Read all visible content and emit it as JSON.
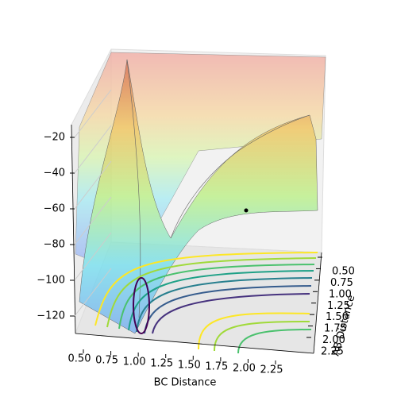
{
  "chart_data": {
    "type": "surface3d",
    "xlabel": "BC Distance",
    "ylabel": "AB Distance",
    "xticks": [
      {
        "value": 0.5,
        "label": "0.50"
      },
      {
        "value": 0.75,
        "label": "0.75"
      },
      {
        "value": 1.0,
        "label": "1.00"
      },
      {
        "value": 1.25,
        "label": "1.25"
      },
      {
        "value": 1.5,
        "label": "1.50"
      },
      {
        "value": 1.75,
        "label": "1.75"
      },
      {
        "value": 2.0,
        "label": "2.00"
      },
      {
        "value": 2.25,
        "label": "2.25"
      }
    ],
    "yticks": [
      {
        "value": 0.5,
        "label": "0.50"
      },
      {
        "value": 0.75,
        "label": "0.75"
      },
      {
        "value": 1.0,
        "label": "1.00"
      },
      {
        "value": 1.25,
        "label": "1.25"
      },
      {
        "value": 1.5,
        "label": "1.50"
      },
      {
        "value": 1.75,
        "label": "1.75"
      },
      {
        "value": 2.0,
        "label": "2.00"
      },
      {
        "value": 2.25,
        "label": "2.25"
      }
    ],
    "zticks": [
      {
        "value": -20,
        "label": "−20"
      },
      {
        "value": -40,
        "label": "−40"
      },
      {
        "value": -60,
        "label": "−60"
      },
      {
        "value": -80,
        "label": "−80"
      },
      {
        "value": -100,
        "label": "−100"
      },
      {
        "value": -120,
        "label": "−120"
      }
    ]
  }
}
